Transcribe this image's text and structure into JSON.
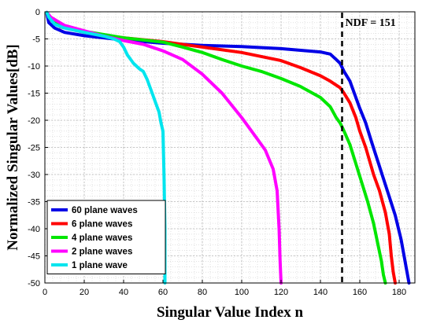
{
  "chart_data": {
    "type": "line",
    "title": "",
    "xlabel": "Singular Value Index n",
    "ylabel": "Normalized Singular Values[dB]",
    "xlim": [
      0,
      188
    ],
    "ylim": [
      -50,
      0
    ],
    "xticks": [
      0,
      20,
      40,
      60,
      80,
      100,
      120,
      140,
      160,
      180
    ],
    "yticks": [
      0,
      -5,
      -10,
      -15,
      -20,
      -25,
      -30,
      -35,
      -40,
      -45,
      -50
    ],
    "grid": true,
    "legend_position": "bottom-left",
    "annotation": {
      "label": "NDF = 151",
      "x": 151,
      "style": "dashed vertical line"
    },
    "series": [
      {
        "name": "60 plane waves",
        "color": "#0000e6",
        "points": [
          [
            1,
            -0.3
          ],
          [
            2,
            -2.0
          ],
          [
            5,
            -3.0
          ],
          [
            10,
            -3.8
          ],
          [
            20,
            -4.4
          ],
          [
            40,
            -5.2
          ],
          [
            60,
            -5.8
          ],
          [
            80,
            -6.2
          ],
          [
            100,
            -6.4
          ],
          [
            120,
            -6.8
          ],
          [
            130,
            -7.1
          ],
          [
            140,
            -7.4
          ],
          [
            145,
            -7.8
          ],
          [
            148,
            -8.8
          ],
          [
            150,
            -9.5
          ],
          [
            152,
            -11.0
          ],
          [
            155,
            -12.8
          ],
          [
            158,
            -15.8
          ],
          [
            160,
            -17.8
          ],
          [
            163,
            -20.5
          ],
          [
            166,
            -24.0
          ],
          [
            170,
            -28.5
          ],
          [
            174,
            -33.0
          ],
          [
            178,
            -37.5
          ],
          [
            181,
            -42.0
          ],
          [
            183,
            -46.0
          ],
          [
            184,
            -48.0
          ],
          [
            185,
            -50.0
          ]
        ]
      },
      {
        "name": "6 plane waves",
        "color": "#ff0000",
        "points": [
          [
            1,
            -0.2
          ],
          [
            3,
            -1.5
          ],
          [
            8,
            -2.8
          ],
          [
            20,
            -3.8
          ],
          [
            40,
            -4.8
          ],
          [
            60,
            -5.5
          ],
          [
            80,
            -6.5
          ],
          [
            100,
            -7.5
          ],
          [
            120,
            -9.0
          ],
          [
            130,
            -10.3
          ],
          [
            140,
            -11.8
          ],
          [
            145,
            -12.8
          ],
          [
            150,
            -14.0
          ],
          [
            152,
            -15.0
          ],
          [
            155,
            -16.8
          ],
          [
            158,
            -19.5
          ],
          [
            160,
            -22.0
          ],
          [
            163,
            -25.0
          ],
          [
            167,
            -30.0
          ],
          [
            170,
            -33.0
          ],
          [
            173,
            -37.0
          ],
          [
            175,
            -41.0
          ],
          [
            176,
            -45.0
          ],
          [
            177,
            -48.0
          ],
          [
            178,
            -50.0
          ]
        ]
      },
      {
        "name": "4 plane waves",
        "color": "#00e600",
        "points": [
          [
            1,
            -0.2
          ],
          [
            3,
            -1.2
          ],
          [
            10,
            -2.7
          ],
          [
            20,
            -3.6
          ],
          [
            40,
            -4.8
          ],
          [
            60,
            -5.6
          ],
          [
            70,
            -6.5
          ],
          [
            80,
            -7.5
          ],
          [
            90,
            -8.8
          ],
          [
            100,
            -10.0
          ],
          [
            110,
            -11.0
          ],
          [
            120,
            -12.3
          ],
          [
            130,
            -13.8
          ],
          [
            140,
            -15.8
          ],
          [
            145,
            -17.5
          ],
          [
            148,
            -19.5
          ],
          [
            150,
            -20.5
          ],
          [
            152,
            -22.0
          ],
          [
            155,
            -24.5
          ],
          [
            158,
            -28.0
          ],
          [
            161,
            -31.5
          ],
          [
            164,
            -35.0
          ],
          [
            167,
            -39.0
          ],
          [
            169,
            -42.5
          ],
          [
            171,
            -46.0
          ],
          [
            172,
            -48.5
          ],
          [
            173,
            -50.0
          ]
        ]
      },
      {
        "name": "2 plane waves",
        "color": "#ff00ff",
        "points": [
          [
            1,
            -0.1
          ],
          [
            3,
            -1.0
          ],
          [
            10,
            -2.5
          ],
          [
            20,
            -3.5
          ],
          [
            30,
            -4.5
          ],
          [
            40,
            -5.3
          ],
          [
            50,
            -6.0
          ],
          [
            60,
            -7.2
          ],
          [
            70,
            -8.8
          ],
          [
            80,
            -11.5
          ],
          [
            90,
            -15.0
          ],
          [
            100,
            -19.5
          ],
          [
            108,
            -23.5
          ],
          [
            112,
            -25.5
          ],
          [
            116,
            -29.0
          ],
          [
            118,
            -33.0
          ],
          [
            119,
            -40.0
          ],
          [
            119.5,
            -46.0
          ],
          [
            120,
            -50.0
          ]
        ]
      },
      {
        "name": "1 plane wave",
        "color": "#00e5ee",
        "points": [
          [
            1,
            -0.1
          ],
          [
            2,
            -1.0
          ],
          [
            5,
            -2.3
          ],
          [
            10,
            -3.0
          ],
          [
            20,
            -3.8
          ],
          [
            30,
            -4.5
          ],
          [
            35,
            -5.0
          ],
          [
            38,
            -5.5
          ],
          [
            40,
            -6.5
          ],
          [
            42,
            -8.0
          ],
          [
            45,
            -9.5
          ],
          [
            48,
            -10.5
          ],
          [
            50,
            -11.0
          ],
          [
            52,
            -12.5
          ],
          [
            54,
            -14.5
          ],
          [
            56,
            -16.5
          ],
          [
            58,
            -18.5
          ],
          [
            59,
            -20.5
          ],
          [
            60,
            -22.0
          ],
          [
            60.5,
            -30.0
          ],
          [
            61,
            -40.0
          ],
          [
            61,
            -50.0
          ]
        ]
      }
    ]
  }
}
